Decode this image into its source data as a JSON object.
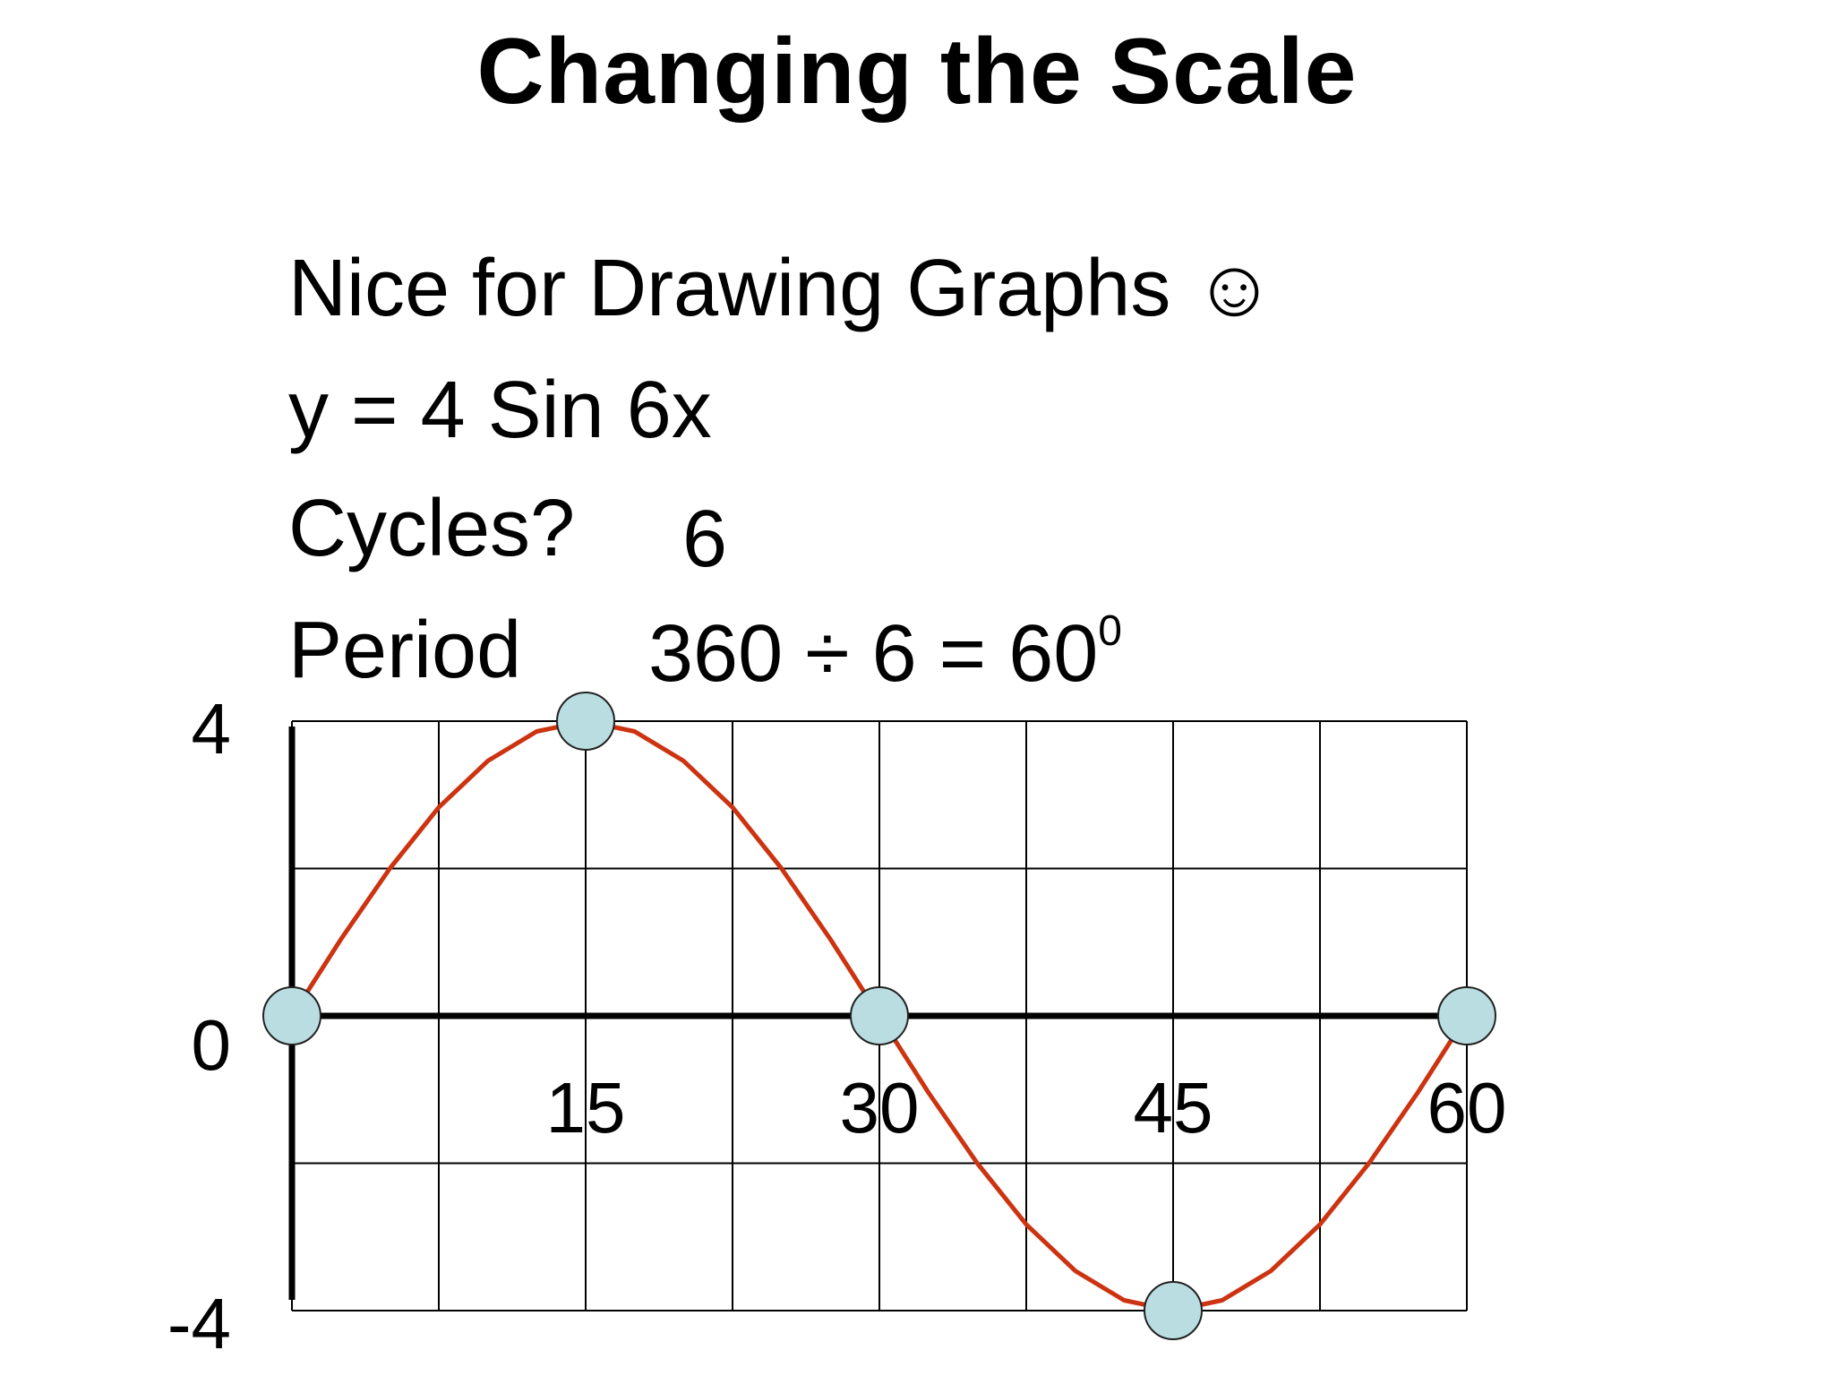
{
  "slide": {
    "title": "Changing the Scale",
    "line_nice": "Nice for Drawing Graphs ☺",
    "line_equation": "y = 4 Sin 6x",
    "cycles_label": "Cycles?",
    "cycles_value": "6",
    "period_label": "Period",
    "period_calc": "360 ÷ 6 = 60",
    "period_superscript": "0"
  },
  "chart_data": {
    "type": "line",
    "title": "",
    "xlabel": "",
    "ylabel": "",
    "function": "y = 4 sin(6x)",
    "x_ticks": [
      "15",
      "30",
      "45",
      "60"
    ],
    "y_ticks": [
      "4",
      "0",
      "-4"
    ],
    "xlim": [
      0,
      60
    ],
    "ylim": [
      -4,
      4
    ],
    "grid": true,
    "series": [
      {
        "x": [
          0,
          2.5,
          5,
          7.5,
          10,
          12.5,
          15,
          17.5,
          20,
          22.5,
          25,
          27.5,
          30,
          32.5,
          35,
          37.5,
          40,
          42.5,
          45,
          47.5,
          50,
          52.5,
          55,
          57.5,
          60
        ],
        "y": [
          0,
          1.04,
          2,
          2.83,
          3.46,
          3.86,
          4,
          3.86,
          3.46,
          2.83,
          2,
          1.04,
          0,
          -1.04,
          -2,
          -2.83,
          -3.46,
          -3.86,
          -4,
          -3.86,
          -3.46,
          -2.83,
          -2,
          -1.04,
          0
        ]
      }
    ],
    "key_points": [
      {
        "x": 0,
        "y": 0
      },
      {
        "x": 15,
        "y": 4
      },
      {
        "x": 30,
        "y": 0
      },
      {
        "x": 45,
        "y": -4
      },
      {
        "x": 60,
        "y": 0
      }
    ],
    "colors": {
      "curve": "#cc3311",
      "marker_fill": "#b9dde0",
      "marker_stroke": "#222222",
      "axis": "#000000",
      "grid": "#000000"
    }
  }
}
